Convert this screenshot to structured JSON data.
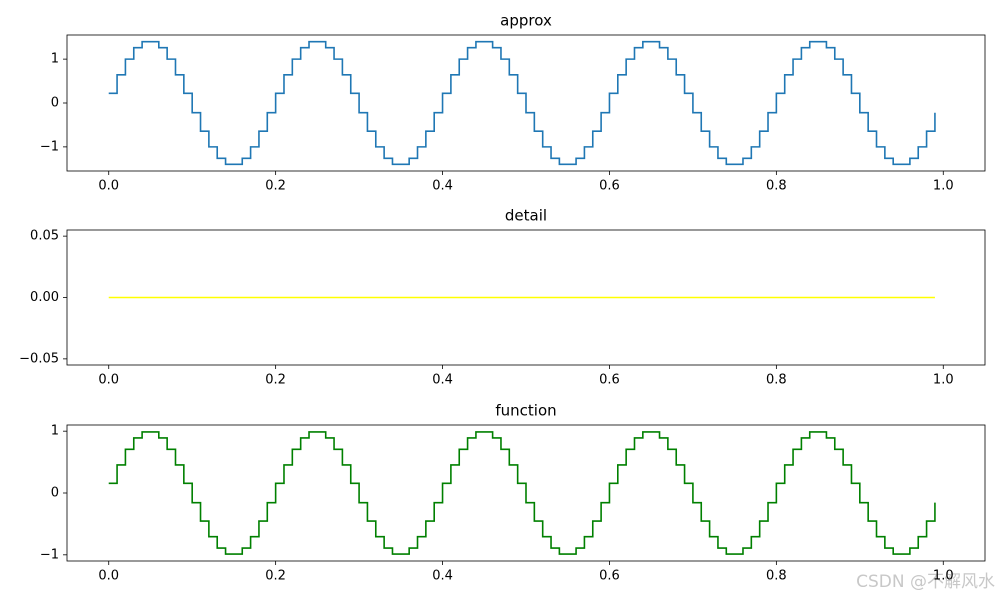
{
  "chart_data": [
    {
      "type": "line",
      "title": "approx",
      "drawstyle": "steps-post",
      "grid": false,
      "xlim": [
        -0.05,
        1.05
      ],
      "xticks": [
        {
          "value": 0,
          "label": "0.0"
        },
        {
          "value": 0.2,
          "label": "0.2"
        },
        {
          "value": 0.4,
          "label": "0.4"
        },
        {
          "value": 0.6,
          "label": "0.6"
        },
        {
          "value": 0.8,
          "label": "0.8"
        },
        {
          "value": 1,
          "label": "1.0"
        }
      ],
      "ylim": [
        -1.55,
        1.55
      ],
      "yticks": [
        {
          "value": -1,
          "label": "−1"
        },
        0,
        1
      ],
      "x": [
        0.0,
        0.01,
        0.02,
        0.03,
        0.04,
        0.05,
        0.06,
        0.07,
        0.08,
        0.09,
        0.1,
        0.11,
        0.12,
        0.13,
        0.14,
        0.15,
        0.16,
        0.17,
        0.18,
        0.19,
        0.2,
        0.21,
        0.22,
        0.23,
        0.24,
        0.25,
        0.26,
        0.27,
        0.28,
        0.29,
        0.3,
        0.31,
        0.32,
        0.33,
        0.34,
        0.35,
        0.36,
        0.37,
        0.38,
        0.39,
        0.4,
        0.41,
        0.42,
        0.43,
        0.44,
        0.45,
        0.46,
        0.47,
        0.48,
        0.49,
        0.5,
        0.51,
        0.52,
        0.53,
        0.54,
        0.55,
        0.56,
        0.57,
        0.58,
        0.59,
        0.6,
        0.61,
        0.62,
        0.63,
        0.64,
        0.65,
        0.66,
        0.67,
        0.68,
        0.69,
        0.7,
        0.71,
        0.72,
        0.73,
        0.74,
        0.75,
        0.76,
        0.77,
        0.78,
        0.79,
        0.8,
        0.81,
        0.82,
        0.83,
        0.84,
        0.85,
        0.86,
        0.87,
        0.88,
        0.89,
        0.9,
        0.91,
        0.92,
        0.93,
        0.94,
        0.95,
        0.96,
        0.97,
        0.98,
        0.99
      ],
      "series": [
        {
          "color": "#1f77b4",
          "values": [
            0.221,
            0.642,
            1.0,
            1.26,
            1.397,
            1.397,
            1.26,
            1.0,
            0.642,
            0.221,
            -0.221,
            -0.642,
            -1.0,
            -1.26,
            -1.397,
            -1.397,
            -1.26,
            -1.0,
            -0.642,
            -0.221,
            0.221,
            0.642,
            1.0,
            1.26,
            1.397,
            1.397,
            1.26,
            1.0,
            0.642,
            0.221,
            -0.221,
            -0.642,
            -1.0,
            -1.26,
            -1.397,
            -1.397,
            -1.26,
            -1.0,
            -0.642,
            -0.221,
            0.221,
            0.642,
            1.0,
            1.26,
            1.397,
            1.397,
            1.26,
            1.0,
            0.642,
            0.221,
            -0.221,
            -0.642,
            -1.0,
            -1.26,
            -1.397,
            -1.397,
            -1.26,
            -1.0,
            -0.642,
            -0.221,
            0.221,
            0.642,
            1.0,
            1.26,
            1.397,
            1.397,
            1.26,
            1.0,
            0.642,
            0.221,
            -0.221,
            -0.642,
            -1.0,
            -1.26,
            -1.397,
            -1.397,
            -1.26,
            -1.0,
            -0.642,
            -0.221,
            0.221,
            0.642,
            1.0,
            1.26,
            1.397,
            1.397,
            1.26,
            1.0,
            0.642,
            0.221,
            -0.221,
            -0.642,
            -1.0,
            -1.26,
            -1.397,
            -1.397,
            -1.26,
            -1.0,
            -0.642,
            -0.221
          ]
        }
      ]
    },
    {
      "type": "line",
      "title": "detail",
      "drawstyle": "steps-post",
      "grid": false,
      "xlim": [
        -0.05,
        1.05
      ],
      "xticks": [
        {
          "value": 0,
          "label": "0.0"
        },
        {
          "value": 0.2,
          "label": "0.2"
        },
        {
          "value": 0.4,
          "label": "0.4"
        },
        {
          "value": 0.6,
          "label": "0.6"
        },
        {
          "value": 0.8,
          "label": "0.8"
        },
        {
          "value": 1,
          "label": "1.0"
        }
      ],
      "ylim": [
        -0.055,
        0.055
      ],
      "yticks": [
        {
          "value": -0.05,
          "label": "−0.05"
        },
        {
          "value": 0,
          "label": "0.00"
        },
        0.05
      ],
      "x": [
        0.0,
        0.01,
        0.02,
        0.03,
        0.04,
        0.05,
        0.06,
        0.07,
        0.08,
        0.09,
        0.1,
        0.11,
        0.12,
        0.13,
        0.14,
        0.15,
        0.16,
        0.17,
        0.18,
        0.19,
        0.2,
        0.21,
        0.22,
        0.23,
        0.24,
        0.25,
        0.26,
        0.27,
        0.28,
        0.29,
        0.3,
        0.31,
        0.32,
        0.33,
        0.34,
        0.35,
        0.36,
        0.37,
        0.38,
        0.39,
        0.4,
        0.41,
        0.42,
        0.43,
        0.44,
        0.45,
        0.46,
        0.47,
        0.48,
        0.49,
        0.5,
        0.51,
        0.52,
        0.53,
        0.54,
        0.55,
        0.56,
        0.57,
        0.58,
        0.59,
        0.6,
        0.61,
        0.62,
        0.63,
        0.64,
        0.65,
        0.66,
        0.67,
        0.68,
        0.69,
        0.7,
        0.71,
        0.72,
        0.73,
        0.74,
        0.75,
        0.76,
        0.77,
        0.78,
        0.79,
        0.8,
        0.81,
        0.82,
        0.83,
        0.84,
        0.85,
        0.86,
        0.87,
        0.88,
        0.89,
        0.9,
        0.91,
        0.92,
        0.93,
        0.94,
        0.95,
        0.96,
        0.97,
        0.98,
        0.99
      ],
      "series": [
        {
          "color": "#ffff00",
          "values": [
            0,
            0,
            0,
            0,
            0,
            0,
            0,
            0,
            0,
            0,
            0,
            0,
            0,
            0,
            0,
            0,
            0,
            0,
            0,
            0,
            0,
            0,
            0,
            0,
            0,
            0,
            0,
            0,
            0,
            0,
            0,
            0,
            0,
            0,
            0,
            0,
            0,
            0,
            0,
            0,
            0,
            0,
            0,
            0,
            0,
            0,
            0,
            0,
            0,
            0,
            0,
            0,
            0,
            0,
            0,
            0,
            0,
            0,
            0,
            0,
            0,
            0,
            0,
            0,
            0,
            0,
            0,
            0,
            0,
            0,
            0,
            0,
            0,
            0,
            0,
            0,
            0,
            0,
            0,
            0,
            0,
            0,
            0,
            0,
            0,
            0,
            0,
            0,
            0,
            0,
            0,
            0,
            0,
            0,
            0,
            0,
            0,
            0,
            0,
            0
          ]
        }
      ]
    },
    {
      "type": "line",
      "title": "function",
      "drawstyle": "steps-post",
      "grid": false,
      "xlim": [
        -0.05,
        1.05
      ],
      "xticks": [
        {
          "value": 0,
          "label": "0.0"
        },
        {
          "value": 0.2,
          "label": "0.2"
        },
        {
          "value": 0.4,
          "label": "0.4"
        },
        {
          "value": 0.6,
          "label": "0.6"
        },
        {
          "value": 0.8,
          "label": "0.8"
        },
        {
          "value": 1,
          "label": "1.0"
        }
      ],
      "ylim": [
        -1.1,
        1.1
      ],
      "yticks": [
        {
          "value": -1,
          "label": "−1"
        },
        0,
        1
      ],
      "x": [
        0.0,
        0.01,
        0.02,
        0.03,
        0.04,
        0.05,
        0.06,
        0.07,
        0.08,
        0.09,
        0.1,
        0.11,
        0.12,
        0.13,
        0.14,
        0.15,
        0.16,
        0.17,
        0.18,
        0.19,
        0.2,
        0.21,
        0.22,
        0.23,
        0.24,
        0.25,
        0.26,
        0.27,
        0.28,
        0.29,
        0.3,
        0.31,
        0.32,
        0.33,
        0.34,
        0.35,
        0.36,
        0.37,
        0.38,
        0.39,
        0.4,
        0.41,
        0.42,
        0.43,
        0.44,
        0.45,
        0.46,
        0.47,
        0.48,
        0.49,
        0.5,
        0.51,
        0.52,
        0.53,
        0.54,
        0.55,
        0.56,
        0.57,
        0.58,
        0.59,
        0.6,
        0.61,
        0.62,
        0.63,
        0.64,
        0.65,
        0.66,
        0.67,
        0.68,
        0.69,
        0.7,
        0.71,
        0.72,
        0.73,
        0.74,
        0.75,
        0.76,
        0.77,
        0.78,
        0.79,
        0.8,
        0.81,
        0.82,
        0.83,
        0.84,
        0.85,
        0.86,
        0.87,
        0.88,
        0.89,
        0.9,
        0.91,
        0.92,
        0.93,
        0.94,
        0.95,
        0.96,
        0.97,
        0.98,
        0.99
      ],
      "series": [
        {
          "color": "#008000",
          "values": [
            0.156,
            0.454,
            0.707,
            0.891,
            0.988,
            0.988,
            0.891,
            0.707,
            0.454,
            0.156,
            -0.156,
            -0.454,
            -0.707,
            -0.891,
            -0.988,
            -0.988,
            -0.891,
            -0.707,
            -0.454,
            -0.156,
            0.156,
            0.454,
            0.707,
            0.891,
            0.988,
            0.988,
            0.891,
            0.707,
            0.454,
            0.156,
            -0.156,
            -0.454,
            -0.707,
            -0.891,
            -0.988,
            -0.988,
            -0.891,
            -0.707,
            -0.454,
            -0.156,
            0.156,
            0.454,
            0.707,
            0.891,
            0.988,
            0.988,
            0.891,
            0.707,
            0.454,
            0.156,
            -0.156,
            -0.454,
            -0.707,
            -0.891,
            -0.988,
            -0.988,
            -0.891,
            -0.707,
            -0.454,
            -0.156,
            0.156,
            0.454,
            0.707,
            0.891,
            0.988,
            0.988,
            0.891,
            0.707,
            0.454,
            0.156,
            -0.156,
            -0.454,
            -0.707,
            -0.891,
            -0.988,
            -0.988,
            -0.891,
            -0.707,
            -0.454,
            -0.156,
            0.156,
            0.454,
            0.707,
            0.891,
            0.988,
            0.988,
            0.891,
            0.707,
            0.454,
            0.156,
            -0.156,
            -0.454,
            -0.707,
            -0.891,
            -0.988,
            -0.988,
            -0.891,
            -0.707,
            -0.454,
            -0.156
          ]
        }
      ]
    }
  ],
  "watermark": "CSDN @不解风水"
}
